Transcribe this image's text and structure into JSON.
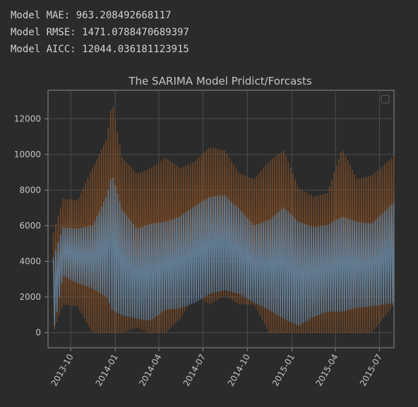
{
  "output": {
    "lines": [
      "Model MAE: 963.208492668117",
      "Model RMSE: 1471.0788470689397",
      "Model AICC: 12044.036181123915"
    ]
  },
  "chart_data": {
    "type": "line",
    "title": "The SARIMA Model Pridict/Forcasts",
    "xlabel": "",
    "ylabel": "",
    "x_range": [
      "2013-08-15",
      "2015-07-31"
    ],
    "ylim": [
      -850,
      13600
    ],
    "y_ticks": [
      0,
      2000,
      4000,
      6000,
      8000,
      10000,
      12000
    ],
    "x_ticks": [
      {
        "date": "2013-10-01",
        "label": "2013-10"
      },
      {
        "date": "2014-01-01",
        "label": "2014-01"
      },
      {
        "date": "2014-04-01",
        "label": "2014-04"
      },
      {
        "date": "2014-07-01",
        "label": "2014-07"
      },
      {
        "date": "2014-10-01",
        "label": "2014-10"
      },
      {
        "date": "2015-01-01",
        "label": "2015-01"
      },
      {
        "date": "2015-04-01",
        "label": "2015-04"
      },
      {
        "date": "2015-07-01",
        "label": "2015-07"
      }
    ],
    "grid": true,
    "legend": "top-right (empty)",
    "x_label_rotation_deg": -60,
    "series": [
      {
        "color": "#7a4a26",
        "values": [
          {
            "x": "2013-08-26",
            "low": 0,
            "high": 5600
          },
          {
            "x": "2013-09-15",
            "low": 1600,
            "high": 7500
          },
          {
            "x": "2013-10-15",
            "low": 1500,
            "high": 7400
          },
          {
            "x": "2013-11-15",
            "low": 0,
            "high": 9200
          },
          {
            "x": "2013-12-15",
            "low": 0,
            "high": 10900
          },
          {
            "x": "2013-12-25",
            "low": 0,
            "high": 13000
          },
          {
            "x": "2014-01-15",
            "low": 0,
            "high": 9800
          },
          {
            "x": "2014-02-15",
            "low": 300,
            "high": 8900
          },
          {
            "x": "2014-03-15",
            "low": 0,
            "high": 9200
          },
          {
            "x": "2014-04-15",
            "low": 0,
            "high": 9800
          },
          {
            "x": "2014-05-15",
            "low": 800,
            "high": 9200
          },
          {
            "x": "2014-06-15",
            "low": 2200,
            "high": 9600
          },
          {
            "x": "2014-07-15",
            "low": 1600,
            "high": 10400
          },
          {
            "x": "2014-08-15",
            "low": 2100,
            "high": 10200
          },
          {
            "x": "2014-09-15",
            "low": 1600,
            "high": 8900
          },
          {
            "x": "2014-10-15",
            "low": 1600,
            "high": 8600
          },
          {
            "x": "2014-11-15",
            "low": 0,
            "high": 9600
          },
          {
            "x": "2014-12-15",
            "low": 0,
            "high": 10200
          },
          {
            "x": "2015-01-15",
            "low": 0,
            "high": 8100
          },
          {
            "x": "2015-02-15",
            "low": 0,
            "high": 7600
          },
          {
            "x": "2015-03-15",
            "low": 0,
            "high": 7800
          },
          {
            "x": "2015-04-15",
            "low": 0,
            "high": 10300
          },
          {
            "x": "2015-05-15",
            "low": 0,
            "high": 8600
          },
          {
            "x": "2015-06-15",
            "low": 0,
            "high": 8800
          },
          {
            "x": "2015-07-31",
            "low": 1600,
            "high": 9900
          }
        ]
      },
      {
        "color": "#5f8db6",
        "values": [
          {
            "x": "2013-08-26",
            "low": 0,
            "high": 4200
          },
          {
            "x": "2013-09-15",
            "low": 3200,
            "high": 5900
          },
          {
            "x": "2013-10-15",
            "low": 2800,
            "high": 5800
          },
          {
            "x": "2013-11-15",
            "low": 2500,
            "high": 6000
          },
          {
            "x": "2013-12-15",
            "low": 2000,
            "high": 7700
          },
          {
            "x": "2013-12-25",
            "low": 1300,
            "high": 8900
          },
          {
            "x": "2014-01-15",
            "low": 1000,
            "high": 6900
          },
          {
            "x": "2014-02-15",
            "low": 800,
            "high": 5800
          },
          {
            "x": "2014-03-15",
            "low": 700,
            "high": 6100
          },
          {
            "x": "2014-04-15",
            "low": 1300,
            "high": 6200
          },
          {
            "x": "2014-05-15",
            "low": 1400,
            "high": 6500
          },
          {
            "x": "2014-06-15",
            "low": 1700,
            "high": 7100
          },
          {
            "x": "2014-07-15",
            "low": 2200,
            "high": 7600
          },
          {
            "x": "2014-08-15",
            "low": 2400,
            "high": 7700
          },
          {
            "x": "2014-09-15",
            "low": 2200,
            "high": 6900
          },
          {
            "x": "2014-10-15",
            "low": 1700,
            "high": 6000
          },
          {
            "x": "2014-11-15",
            "low": 1300,
            "high": 6300
          },
          {
            "x": "2014-12-15",
            "low": 800,
            "high": 7000
          },
          {
            "x": "2015-01-15",
            "low": 400,
            "high": 6200
          },
          {
            "x": "2015-02-15",
            "low": 900,
            "high": 5900
          },
          {
            "x": "2015-03-15",
            "low": 1200,
            "high": 6000
          },
          {
            "x": "2015-04-15",
            "low": 1200,
            "high": 6500
          },
          {
            "x": "2015-05-15",
            "low": 1400,
            "high": 6200
          },
          {
            "x": "2015-06-15",
            "low": 1500,
            "high": 6100
          },
          {
            "x": "2015-07-31",
            "low": 1700,
            "high": 7300
          }
        ]
      }
    ]
  }
}
